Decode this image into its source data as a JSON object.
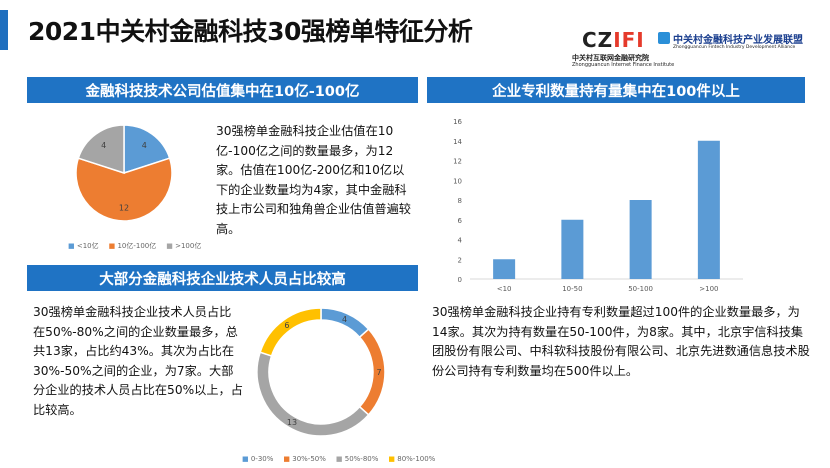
{
  "title": "2021中关村金融科技30强榜单特征分析",
  "logos": {
    "czifi": "CZIFI",
    "czifi_cn": "中关村互联网金融研究院",
    "czifi_en": "Zhongguancun Internet Finance Institute",
    "alliance_cn": "中关村金融科技产业发展联盟",
    "alliance_en": "Zhongguancun Fintech Industry Development Alliance"
  },
  "colors": {
    "header": "#1f73c4",
    "blue": "#5b9bd5",
    "orange": "#ed7d31",
    "gray": "#a5a5a5",
    "yellow": "#ffc000"
  },
  "section1": {
    "header": "金融科技技术公司估值集中在10亿-100亿",
    "text": "30强榜单金融科技企业估值在10亿-100亿之间的数量最多，为12家。估值在100亿-200亿和10亿以下的企业数量均为4家，其中金融科技上市公司和独角兽企业估值普遍较高。"
  },
  "section2": {
    "header": "企业专利数量持有量集中在100件以上",
    "text": "30强榜单金融科技企业持有专利数量超过100件的企业数量最多，为14家。其次为持有数量在50-100件，为8家。其中，北京宇信科技集团股份有限公司、中科软科技股份有限公司、北京先进数通信息技术股份公司持有专利数量均在500件以上。"
  },
  "section3": {
    "header": "大部分金融科技企业技术人员占比较高",
    "text": "30强榜单金融科技企业技术人员占比在50%-80%之间的企业数量最多，总共13家，占比约43%。其次为占比在30%-50%之间的企业，为7家。大部分企业的技术人员占比在50%以上，占比较高。"
  },
  "chart_data": [
    {
      "type": "pie",
      "categories": [
        "<10亿",
        "10亿-100亿",
        ">100亿"
      ],
      "values": [
        4,
        12,
        4
      ],
      "colors": [
        "#5b9bd5",
        "#ed7d31",
        "#a5a5a5"
      ],
      "legend": "bottom"
    },
    {
      "type": "bar",
      "categories": [
        "<10",
        "10-50",
        "50-100",
        ">100"
      ],
      "values": [
        2,
        6,
        8,
        14
      ],
      "ylim": [
        0,
        16
      ],
      "yticks": [
        "0",
        "2",
        "4",
        "6",
        "8",
        "10",
        "12",
        "14",
        "16"
      ],
      "color": "#5b9bd5",
      "grid": false
    },
    {
      "type": "pie",
      "donut": true,
      "categories": [
        "0-30%",
        "30%-50%",
        "50%-80%",
        "80%-100%"
      ],
      "values": [
        4,
        7,
        13,
        6
      ],
      "colors": [
        "#5b9bd5",
        "#ed7d31",
        "#a5a5a5",
        "#ffc000"
      ],
      "legend": "bottom"
    }
  ]
}
